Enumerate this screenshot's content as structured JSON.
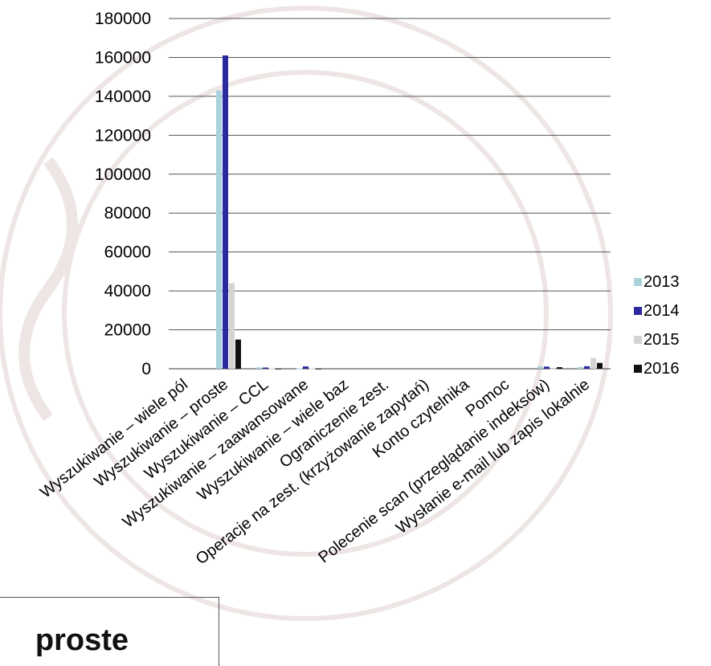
{
  "footer": {
    "title": "proste"
  },
  "chart_data": {
    "type": "bar",
    "ylim": [
      0,
      180000
    ],
    "yticks": [
      "0",
      "20000",
      "40000",
      "60000",
      "80000",
      "100000",
      "120000",
      "140000",
      "160000",
      "180000"
    ],
    "categories": [
      "Wyszukiwanie – wiele pól",
      "Wyszukiwanie – proste",
      "Wyszukiwanie – CCL",
      "Wyszukiwanie – zaawansowane",
      "Wyszukiwanie – wiele baz",
      "Ograniczenie zest.",
      "Operacje na zest. (krzyżowanie zapytań)",
      "Konto czytelnika",
      "Pomoc",
      "Polecenie scan (przeglądanie indeksów)",
      "Wysłanie e-mail lub zapis lokalnie"
    ],
    "series": [
      {
        "name": "2013",
        "color": "#a9d2dc",
        "values": [
          0,
          143000,
          700,
          200,
          0,
          0,
          0,
          0,
          0,
          1200,
          900
        ]
      },
      {
        "name": "2014",
        "color": "#2a2a9e",
        "values": [
          0,
          161000,
          600,
          1200,
          0,
          0,
          0,
          0,
          0,
          1100,
          1300
        ]
      },
      {
        "name": "2015",
        "color": "#d4d4d4",
        "values": [
          0,
          44000,
          200,
          200,
          0,
          0,
          0,
          0,
          0,
          100,
          5500
        ]
      },
      {
        "name": "2016",
        "color": "#111111",
        "values": [
          0,
          15000,
          100,
          100,
          0,
          0,
          0,
          0,
          0,
          800,
          3000
        ]
      }
    ],
    "grid": true,
    "legend": "right"
  }
}
